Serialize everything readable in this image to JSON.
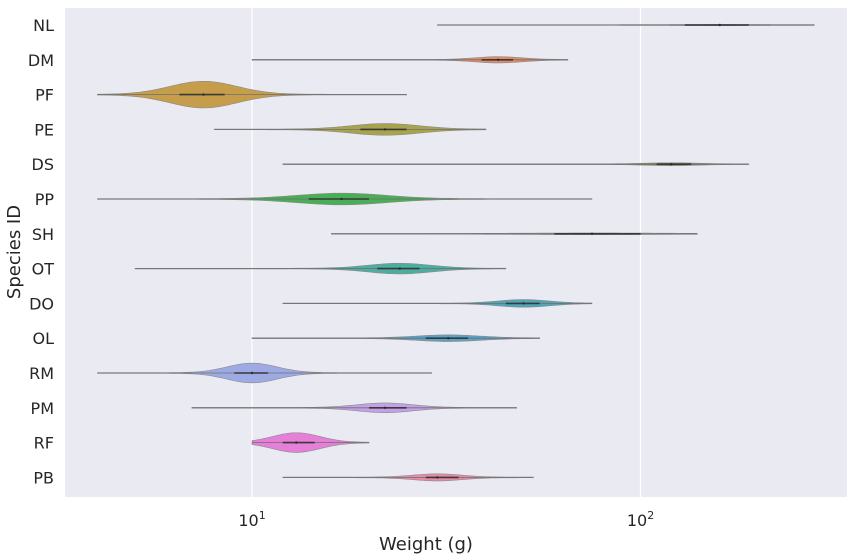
{
  "chart_data": {
    "type": "violin",
    "orientation": "horizontal",
    "title": "",
    "xlabel": "Weight (g)",
    "ylabel": "Species ID",
    "x_scale": "log",
    "xlim": [
      3.3,
      340
    ],
    "x_ticks": [
      {
        "value": 10,
        "base": "10",
        "exp": "1"
      },
      {
        "value": 100,
        "base": "10",
        "exp": "2"
      }
    ],
    "grid": true,
    "background": "#EAEAF2",
    "categories": [
      "NL",
      "DM",
      "PF",
      "PE",
      "DS",
      "PP",
      "SH",
      "OT",
      "DO",
      "OL",
      "RM",
      "PM",
      "RF",
      "PB"
    ],
    "series": [
      {
        "category": "NL",
        "color": "#C2AAA9",
        "min": 30,
        "q1": 130,
        "median": 160,
        "q3": 190,
        "max": 280,
        "half_width": 0.3
      },
      {
        "category": "DM",
        "color": "#E08B6A",
        "min": 10,
        "q1": 39,
        "median": 43,
        "q3": 47,
        "max": 65,
        "half_width": 2.8
      },
      {
        "category": "PF",
        "color": "#C59D4B",
        "min": 4,
        "q1": 6.5,
        "median": 7.5,
        "q3": 8.5,
        "max": 25,
        "half_width": 13
      },
      {
        "category": "PE",
        "color": "#A8A44D",
        "min": 8,
        "q1": 19,
        "median": 22,
        "q3": 25,
        "max": 40,
        "half_width": 5.5
      },
      {
        "category": "DS",
        "color": "#6E9355",
        "min": 12,
        "q1": 110,
        "median": 120,
        "q3": 135,
        "max": 190,
        "half_width": 1.1
      },
      {
        "category": "PP",
        "color": "#4AAE57",
        "min": 4,
        "q1": 14,
        "median": 17,
        "q3": 20,
        "max": 75,
        "half_width": 5.5
      },
      {
        "category": "SH",
        "color": "#5A9D89",
        "min": 16,
        "q1": 60,
        "median": 75,
        "q3": 100,
        "max": 140,
        "half_width": 0.5
      },
      {
        "category": "OT",
        "color": "#4DADA0",
        "min": 5,
        "q1": 21,
        "median": 24,
        "q3": 27,
        "max": 45,
        "half_width": 5
      },
      {
        "category": "DO",
        "color": "#4FA6B6",
        "min": 12,
        "q1": 45,
        "median": 50,
        "q3": 55,
        "max": 75,
        "half_width": 3.5
      },
      {
        "category": "OL",
        "color": "#5AA2C8",
        "min": 10,
        "q1": 28,
        "median": 32,
        "q3": 36,
        "max": 55,
        "half_width": 3
      },
      {
        "category": "RM",
        "color": "#9DAAE4",
        "min": 4,
        "q1": 9,
        "median": 10,
        "q3": 11,
        "max": 29,
        "half_width": 9.5
      },
      {
        "category": "PM",
        "color": "#C4A1E6",
        "min": 7,
        "q1": 20,
        "median": 22,
        "q3": 25,
        "max": 48,
        "half_width": 4.5
      },
      {
        "category": "RF",
        "color": "#E57FD8",
        "min": 10,
        "q1": 12,
        "median": 13,
        "q3": 14.5,
        "max": 20,
        "half_width": 9.5
      },
      {
        "category": "PB",
        "color": "#E58BA8",
        "min": 12,
        "q1": 28,
        "median": 30,
        "q3": 34,
        "max": 53,
        "half_width": 3.2
      }
    ]
  }
}
